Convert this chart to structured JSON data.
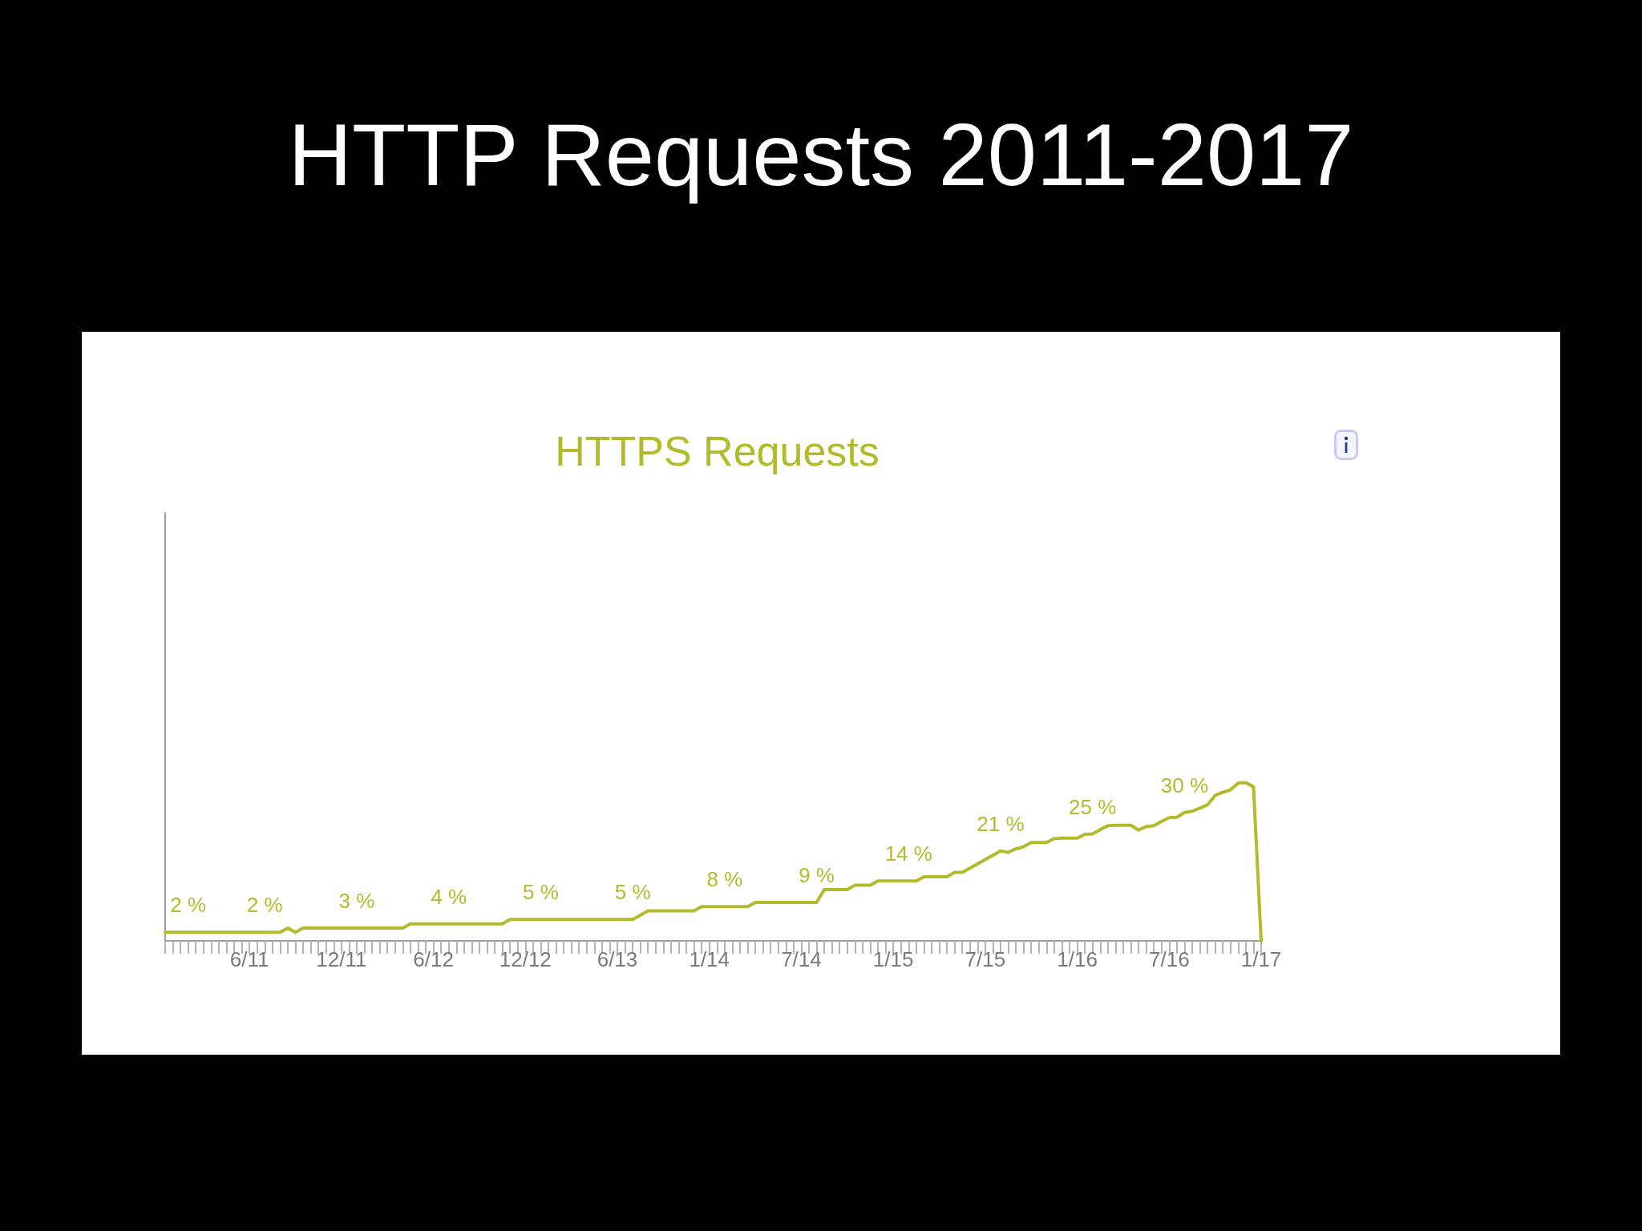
{
  "chart_data": {
    "type": "line",
    "title": "HTTP Requests 2011-2017",
    "subtitle": "HTTPS Requests",
    "categories": [
      null,
      null,
      null,
      null,
      null,
      null,
      null,
      null,
      null,
      null,
      null,
      "6/11",
      null,
      null,
      null,
      null,
      null,
      null,
      null,
      null,
      null,
      null,
      null,
      "12/11",
      null,
      null,
      null,
      null,
      null,
      null,
      null,
      null,
      null,
      null,
      null,
      "6/12",
      null,
      null,
      null,
      null,
      null,
      null,
      null,
      null,
      null,
      null,
      null,
      "12/12",
      null,
      null,
      null,
      null,
      null,
      null,
      null,
      null,
      null,
      null,
      null,
      "6/13",
      null,
      null,
      null,
      null,
      null,
      null,
      null,
      null,
      null,
      null,
      null,
      "1/14",
      null,
      null,
      null,
      null,
      null,
      null,
      null,
      null,
      null,
      null,
      null,
      "7/14",
      null,
      null,
      null,
      null,
      null,
      null,
      null,
      null,
      null,
      null,
      null,
      "1/15",
      null,
      null,
      null,
      null,
      null,
      null,
      null,
      null,
      null,
      null,
      null,
      "7/15",
      null,
      null,
      null,
      null,
      null,
      null,
      null,
      null,
      null,
      null,
      null,
      "1/16",
      null,
      null,
      null,
      null,
      null,
      null,
      null,
      null,
      null,
      null,
      null,
      "7/16",
      null,
      null,
      null,
      null,
      null,
      null,
      null,
      null,
      null,
      null,
      null,
      "1/17"
    ],
    "series": [
      {
        "color": "#b3ba2c",
        "values": [
          2,
          2,
          2,
          2,
          2,
          2,
          2,
          2,
          2,
          2,
          2,
          2,
          2,
          2,
          2,
          2,
          3,
          2,
          3,
          3,
          3,
          3,
          3,
          3,
          3,
          3,
          3,
          3,
          3,
          3,
          3,
          3,
          4,
          4,
          4,
          4,
          4,
          4,
          4,
          4,
          4,
          4,
          4,
          4,
          4,
          5,
          5,
          5,
          5,
          5,
          5,
          5,
          5,
          5,
          5,
          5,
          5,
          5,
          5,
          5,
          5,
          5,
          6,
          7,
          7,
          7,
          7,
          7,
          7,
          7,
          8,
          8,
          8,
          8,
          8,
          8,
          8,
          9,
          9,
          9,
          9,
          9,
          9,
          9,
          9,
          9,
          12,
          12,
          12,
          12,
          13,
          13,
          13,
          14,
          14,
          14,
          14,
          14,
          14,
          15,
          15,
          15,
          15,
          16,
          16,
          17,
          18,
          19,
          20,
          21,
          20.7,
          21.5,
          22,
          23,
          23,
          23,
          23.9,
          24,
          24,
          24,
          24.9,
          25,
          26,
          26.9,
          27,
          27,
          27,
          25.9,
          26.7,
          26.9,
          27.9,
          28.8,
          28.9,
          30,
          30.3,
          31,
          31.8,
          34,
          34.7,
          35.3,
          36.9,
          37,
          36,
          0
        ],
        "value_labels": [
          null,
          null,
          null,
          "2 %",
          null,
          null,
          null,
          null,
          null,
          null,
          null,
          null,
          null,
          "2 %",
          null,
          null,
          null,
          null,
          null,
          null,
          null,
          null,
          null,
          null,
          null,
          "3 %",
          null,
          null,
          null,
          null,
          null,
          null,
          null,
          null,
          null,
          null,
          null,
          "4 %",
          null,
          null,
          null,
          null,
          null,
          null,
          null,
          null,
          null,
          null,
          null,
          "5 %",
          null,
          null,
          null,
          null,
          null,
          null,
          null,
          null,
          null,
          null,
          null,
          "5 %",
          null,
          null,
          null,
          null,
          null,
          null,
          null,
          null,
          null,
          null,
          null,
          "8 %",
          null,
          null,
          null,
          null,
          null,
          null,
          null,
          null,
          null,
          null,
          null,
          "9 %",
          null,
          null,
          null,
          null,
          null,
          null,
          null,
          null,
          null,
          null,
          null,
          "14 %",
          null,
          null,
          null,
          null,
          null,
          null,
          null,
          null,
          null,
          null,
          null,
          "21 %",
          null,
          null,
          null,
          null,
          null,
          null,
          null,
          null,
          null,
          null,
          null,
          "25 %",
          null,
          null,
          null,
          null,
          null,
          null,
          null,
          null,
          null,
          null,
          null,
          "30 %",
          null,
          null,
          null,
          null,
          null,
          null,
          null,
          null,
          null,
          null
        ]
      }
    ],
    "ylim": [
      0,
      100
    ],
    "tick_labels": "x",
    "marker": "none",
    "line_style": "solid"
  }
}
